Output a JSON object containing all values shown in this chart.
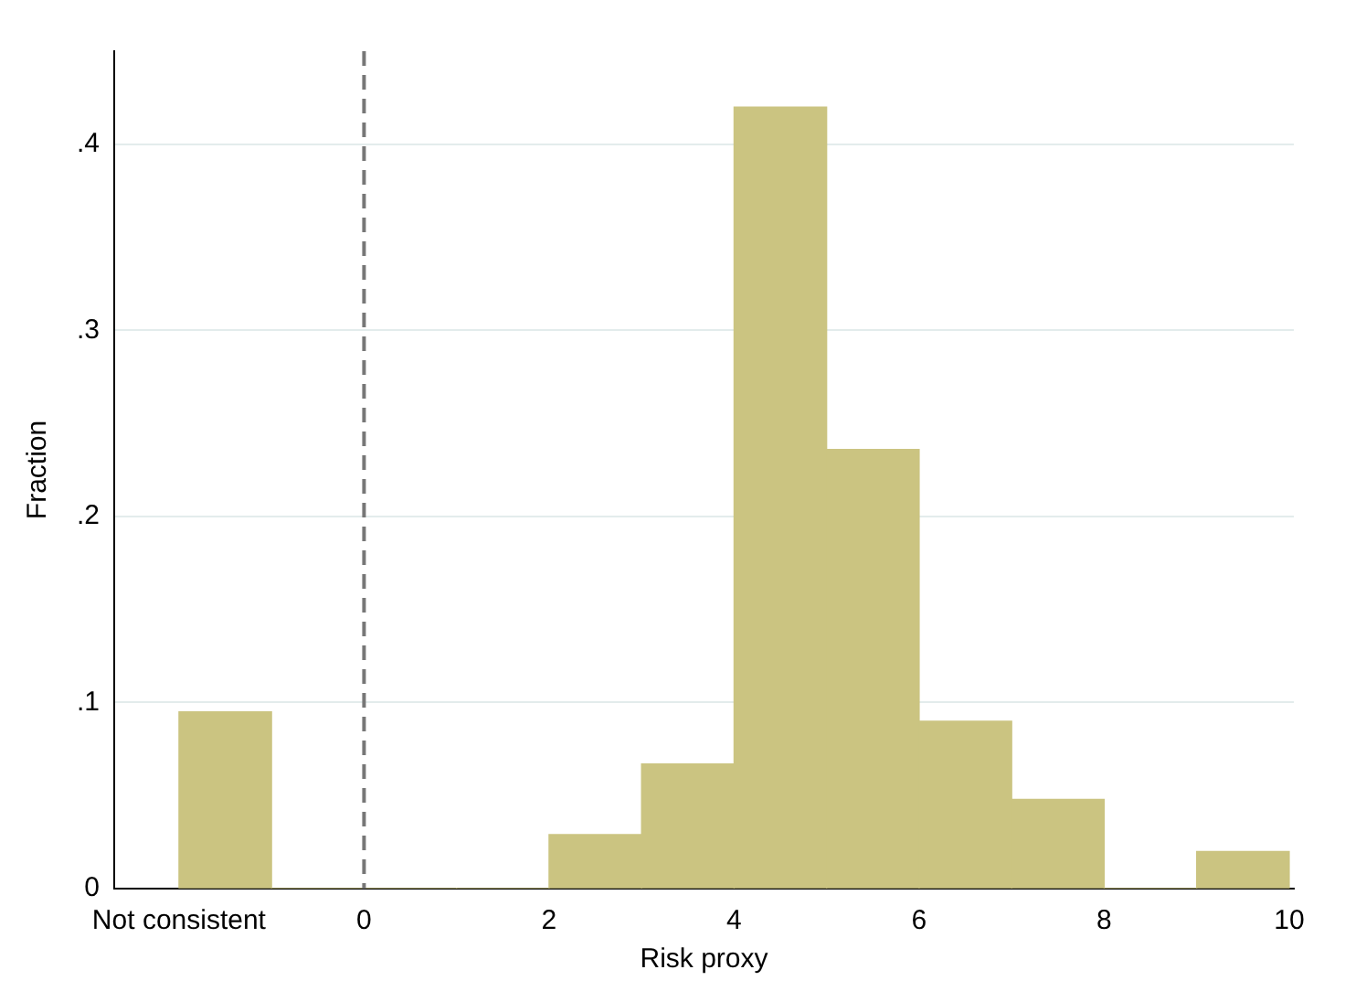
{
  "chart_data": {
    "type": "histogram",
    "xlabel": "Risk proxy",
    "ylabel": "Fraction",
    "bins": [
      -2,
      -1,
      0,
      1,
      2,
      3,
      4,
      5,
      6,
      7,
      8,
      9,
      10
    ],
    "values": [
      0.095,
      0,
      0,
      0,
      0.029,
      0.067,
      0.42,
      0.236,
      0.09,
      0.048,
      0,
      0.02
    ],
    "color": "#cbc481",
    "xlim": [
      -2.7,
      10.05
    ],
    "ylim": [
      0,
      0.45
    ],
    "xticks": [
      {
        "value": -2,
        "label": "Not consistent"
      },
      0,
      2,
      4,
      6,
      8,
      10
    ],
    "yticks": [
      0,
      {
        "value": 0.1,
        "label": ".1"
      },
      {
        "value": 0.2,
        "label": ".2"
      },
      {
        "value": 0.3,
        "label": ".3"
      },
      {
        "value": 0.4,
        "label": ".4"
      }
    ],
    "grid": "y",
    "ref_lines": [
      {
        "axis": "x",
        "value": 0,
        "color": "#777777",
        "line_style": "dashed"
      }
    ]
  }
}
